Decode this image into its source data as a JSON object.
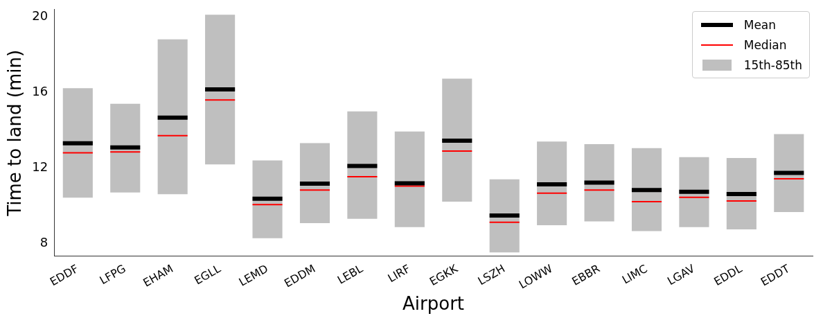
{
  "chart_data": {
    "type": "box",
    "xlabel": "Airport",
    "ylabel": "Time to land (min)",
    "categories": [
      "EDDF",
      "LFPG",
      "EHAM",
      "EGLL",
      "LEMD",
      "EDDM",
      "LEBL",
      "LIRF",
      "EGKK",
      "LSZH",
      "LOWW",
      "EBBR",
      "LIMC",
      "LGAV",
      "EDDL",
      "EDDT"
    ],
    "series": [
      {
        "name": "15th-85th",
        "color": "#bfbfbf",
        "boxes": [
          {
            "low": 10.41,
            "q1": 10.41,
            "median": 12.8,
            "q3": 16.23,
            "high": 16.23,
            "mean": 13.3
          },
          {
            "low": 10.69,
            "q1": 10.69,
            "median": 12.84,
            "q3": 15.4,
            "high": 15.4,
            "mean": 13.08
          },
          {
            "low": 10.6,
            "q1": 10.6,
            "median": 13.71,
            "q3": 18.82,
            "high": 18.82,
            "mean": 14.66
          },
          {
            "low": 12.18,
            "q1": 12.18,
            "median": 15.6,
            "q3": 20.13,
            "high": 20.13,
            "mean": 16.16
          },
          {
            "low": 8.26,
            "q1": 8.26,
            "median": 10.05,
            "q3": 12.39,
            "high": 12.39,
            "mean": 10.36
          },
          {
            "low": 9.06,
            "q1": 9.06,
            "median": 10.82,
            "q3": 13.31,
            "high": 13.31,
            "mean": 11.16
          },
          {
            "low": 9.29,
            "q1": 9.29,
            "median": 11.53,
            "q3": 14.99,
            "high": 14.99,
            "mean": 12.1
          },
          {
            "low": 8.85,
            "q1": 8.85,
            "median": 11.03,
            "q3": 13.93,
            "high": 13.93,
            "mean": 11.18
          },
          {
            "low": 10.2,
            "q1": 10.2,
            "median": 12.89,
            "q3": 16.73,
            "high": 16.73,
            "mean": 13.44
          },
          {
            "low": 7.51,
            "q1": 7.51,
            "median": 9.11,
            "q3": 11.39,
            "high": 11.39,
            "mean": 9.47
          },
          {
            "low": 8.95,
            "q1": 8.95,
            "median": 10.65,
            "q3": 13.39,
            "high": 13.39,
            "mean": 11.12
          },
          {
            "low": 9.15,
            "q1": 9.15,
            "median": 10.82,
            "q3": 13.26,
            "high": 13.26,
            "mean": 11.21
          },
          {
            "low": 8.64,
            "q1": 8.64,
            "median": 10.2,
            "q3": 13.04,
            "high": 13.04,
            "mean": 10.82
          },
          {
            "low": 8.85,
            "q1": 8.85,
            "median": 10.43,
            "q3": 12.57,
            "high": 12.57,
            "mean": 10.73
          },
          {
            "low": 8.73,
            "q1": 8.73,
            "median": 10.24,
            "q3": 12.52,
            "high": 12.52,
            "mean": 10.61
          },
          {
            "low": 9.65,
            "q1": 9.65,
            "median": 11.42,
            "q3": 13.79,
            "high": 13.79,
            "mean": 11.73
          }
        ]
      }
    ],
    "annotations": [
      "Mean",
      "Median"
    ],
    "ylim": [
      7.3,
      20.4
    ],
    "yticks": [
      8,
      12,
      16,
      20
    ],
    "legend": "top right"
  }
}
